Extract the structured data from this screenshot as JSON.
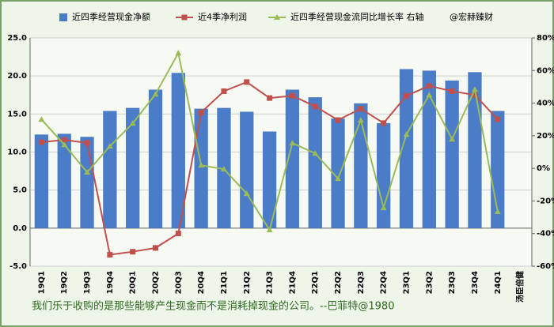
{
  "chart_data": {
    "type": "bar",
    "categories": [
      "19Q1",
      "19Q2",
      "19Q3",
      "19Q4",
      "20Q1",
      "20Q2",
      "20Q3",
      "20Q4",
      "21Q1",
      "21Q2",
      "21Q3",
      "21Q4",
      "22Q1",
      "22Q2",
      "22Q3",
      "22Q4",
      "23Q1",
      "23Q2",
      "23Q3",
      "23Q4",
      "24Q1",
      "汤臣倍健"
    ],
    "series": [
      {
        "name": "近四季经营现金净额",
        "type": "bar",
        "color": "#4a7cc7",
        "values": [
          12.3,
          12.4,
          12.0,
          15.4,
          15.8,
          18.2,
          20.4,
          15.7,
          15.8,
          15.3,
          12.7,
          18.2,
          17.2,
          14.4,
          16.4,
          13.8,
          20.9,
          20.7,
          19.4,
          20.5,
          15.4,
          null
        ]
      },
      {
        "name": "近4季净利润",
        "type": "line",
        "color": "#c0504d",
        "values": [
          11.3,
          11.6,
          11.2,
          -3.5,
          -3.1,
          -2.6,
          -0.7,
          15.2,
          18.0,
          19.2,
          17.1,
          17.4,
          16.0,
          14.2,
          15.7,
          13.8,
          17.4,
          18.7,
          18.0,
          17.5,
          14.3,
          null
        ]
      },
      {
        "name": "近四季经营现金流同比增长率 右轴",
        "type": "line",
        "axis": "y2",
        "color": "#9bbb59",
        "values": [
          30,
          14.5,
          -2.4,
          13.6,
          27.6,
          45.5,
          70.7,
          1.9,
          -0.5,
          -15.5,
          -37.8,
          15.5,
          9.2,
          -6.3,
          29.6,
          -24.2,
          20.8,
          45,
          17.9,
          48.4,
          -26.6,
          null
        ]
      }
    ],
    "ylim": [
      -5,
      25
    ],
    "yticks": [
      {
        "value": -5,
        "label": "-5.0"
      },
      {
        "value": 0,
        "label": "0.0"
      },
      {
        "value": 5,
        "label": "5.0"
      },
      {
        "value": 10,
        "label": "10.0"
      },
      {
        "value": 15,
        "label": "15.0"
      },
      {
        "value": 20,
        "label": "20.0"
      },
      {
        "value": 25,
        "label": "25.0"
      }
    ],
    "y2lim": [
      -60,
      80
    ],
    "y2ticks": [
      {
        "value": -60,
        "label": "-60%"
      },
      {
        "value": -40,
        "label": "-40%"
      },
      {
        "value": -20,
        "label": "-20%"
      },
      {
        "value": 0,
        "label": "0%"
      },
      {
        "value": 20,
        "label": "20%"
      },
      {
        "value": 40,
        "label": "40%"
      },
      {
        "value": 60,
        "label": "60%"
      },
      {
        "value": 80,
        "label": "80%"
      }
    ],
    "grid": true,
    "legend": "top",
    "watermark": "@宏赫臻财",
    "footnote": "我们乐于收购的是那些能够产生现金而不是消耗掉现金的公司。--巴菲特@1980"
  }
}
